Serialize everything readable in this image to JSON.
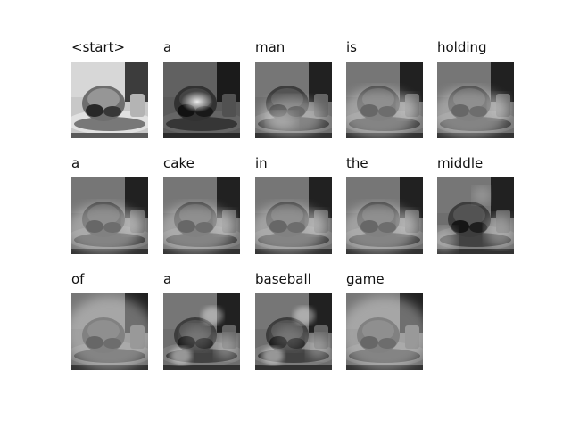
{
  "cells": [
    {
      "word": "<start>",
      "attention": "base"
    },
    {
      "word": "a",
      "attention": "spot"
    },
    {
      "word": "man",
      "attention": "blob-low"
    },
    {
      "word": "is",
      "attention": "wide-low"
    },
    {
      "word": "holding",
      "attention": "wide-low"
    },
    {
      "word": "a",
      "attention": "wide-low"
    },
    {
      "word": "cake",
      "attention": "wide-low"
    },
    {
      "word": "in",
      "attention": "wide-low"
    },
    {
      "word": "the",
      "attention": "wide-low"
    },
    {
      "word": "middle",
      "attention": "edges"
    },
    {
      "word": "of",
      "attention": "wide"
    },
    {
      "word": "a",
      "attention": "scatter"
    },
    {
      "word": "baseball",
      "attention": "scatter"
    },
    {
      "word": "game",
      "attention": "wide"
    }
  ]
}
